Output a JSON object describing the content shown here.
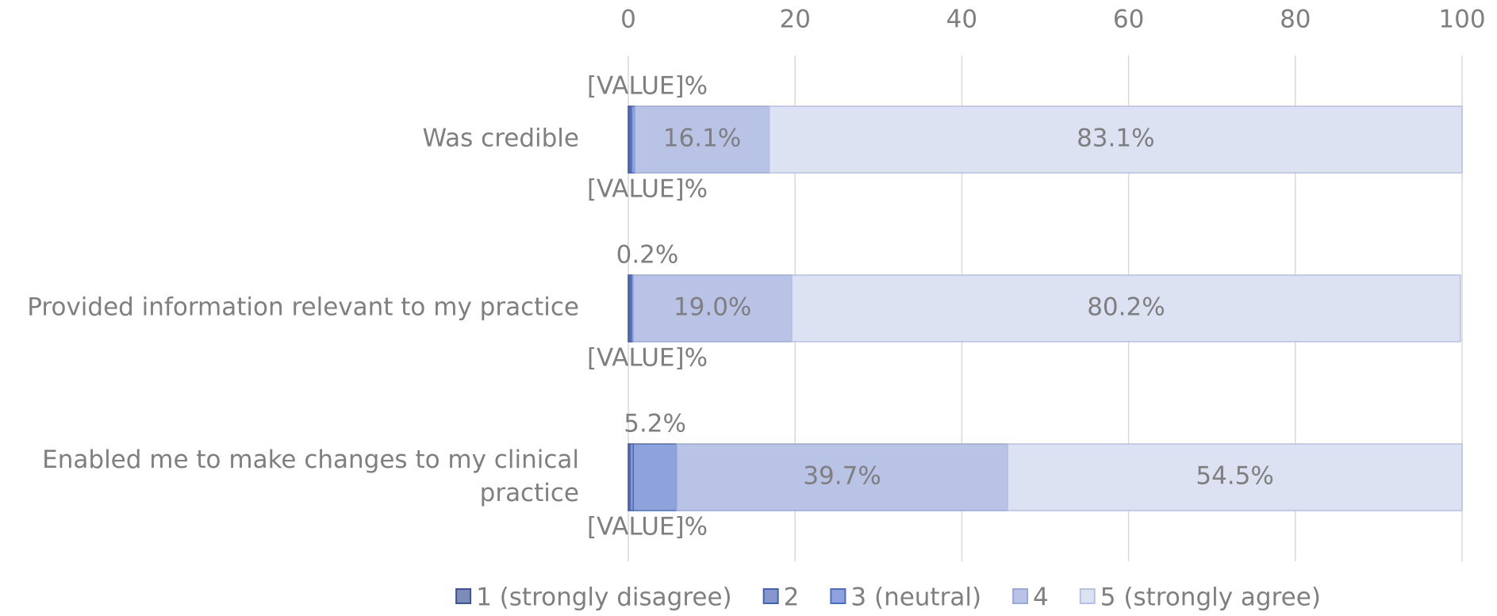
{
  "chart_data": {
    "type": "stacked-barh",
    "categories": [
      "Was credible",
      "Provided information relevant to my practice",
      "Enabled me to make changes to my clinical practice"
    ],
    "series": [
      {
        "name": "1 (strongly disagree)",
        "color": "#7d8cb6",
        "stroke": "#3d5396",
        "values": [
          0.2,
          0.2,
          0.2
        ],
        "value_labels": [
          null,
          null,
          null
        ]
      },
      {
        "name": "2",
        "color": "#8597cc",
        "stroke": "#4460b0",
        "values": [
          0.2,
          0.2,
          0.4
        ],
        "value_labels": [
          "[VALUE]%",
          "[VALUE]%",
          "[VALUE]%"
        ]
      },
      {
        "name": "3 (neutral)",
        "color": "#8ea3dc",
        "stroke": "#4a6cc4",
        "values": [
          0.4,
          0.2,
          5.2
        ],
        "value_labels": [
          "[VALUE]%",
          "0.2%",
          "5.2%"
        ]
      },
      {
        "name": "4",
        "color": "#b8c3e6",
        "stroke": "#9aa9dc",
        "values": [
          16.1,
          19.0,
          39.7
        ],
        "value_labels": [
          "16.1%",
          "19.0%",
          "39.7%"
        ]
      },
      {
        "name": "5 (strongly agree)",
        "color": "#dde2f3",
        "stroke": "#b6c0e6",
        "values": [
          83.1,
          80.2,
          54.5
        ],
        "value_labels": [
          "83.1%",
          "80.2%",
          "54.5%"
        ]
      }
    ],
    "xlim": [
      0,
      100
    ],
    "xticks": [
      0,
      20,
      40,
      60,
      80,
      100
    ],
    "grid": true,
    "legend": "bottom"
  }
}
